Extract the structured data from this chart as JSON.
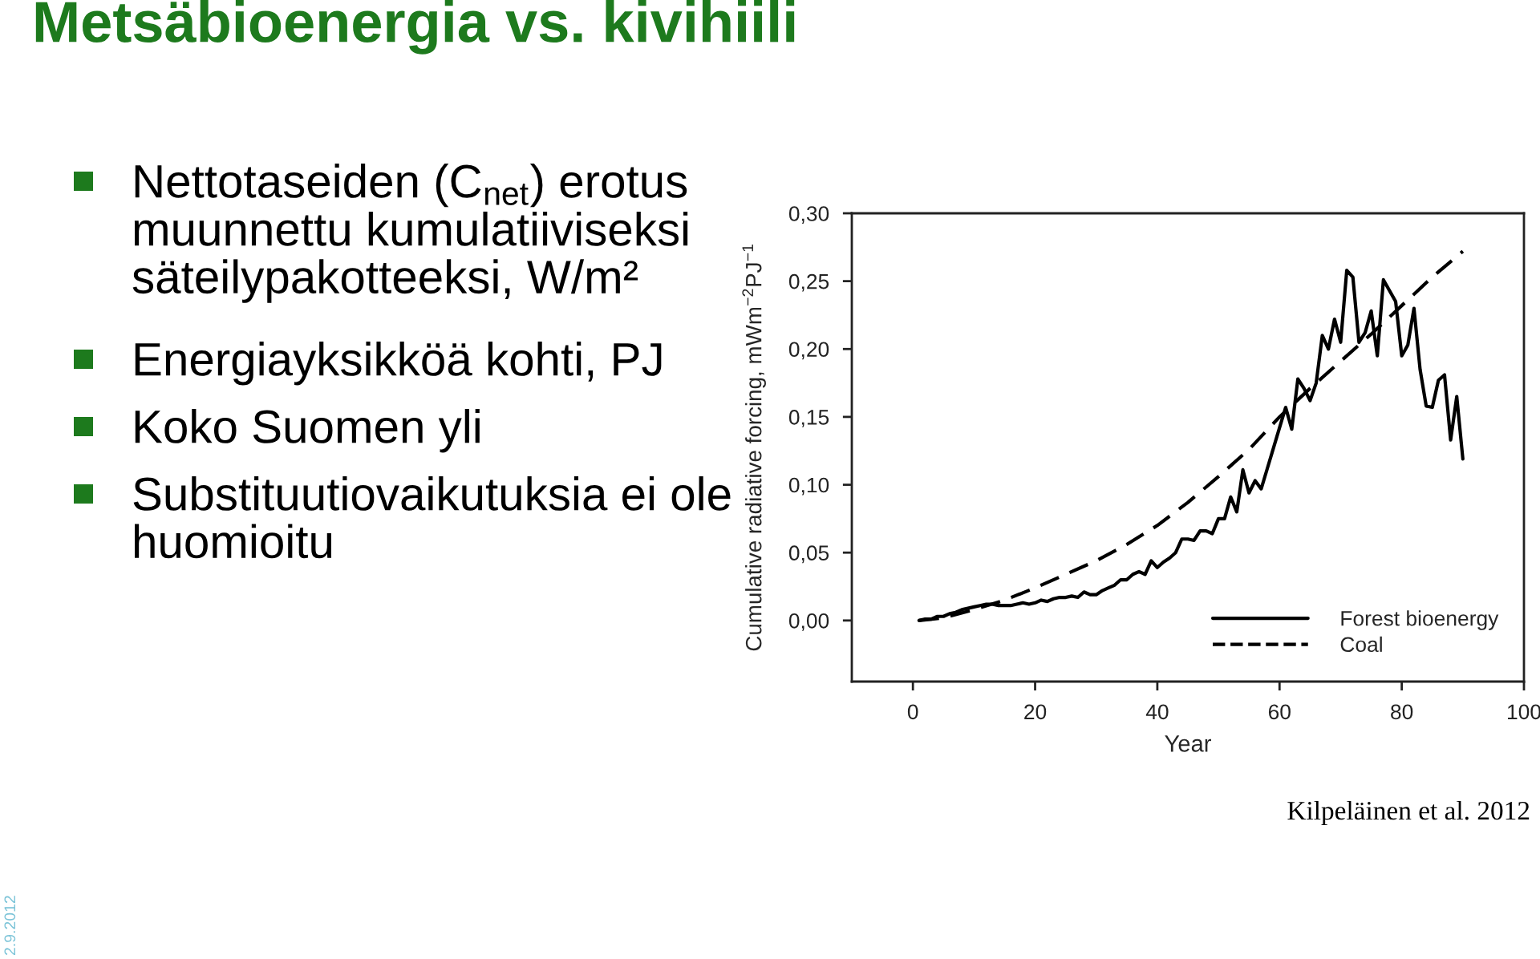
{
  "chart_data": {
    "type": "line",
    "title": "Metsäbioenergia vs. kivihiili",
    "xlabel": "Year",
    "ylabel": "Cumulative radiative forcing, mWm$^{−2}$PJ$^{−1}$",
    "series": [
      {
        "name": "Forest bioenergy",
        "color": "#000000",
        "line_style": "solid",
        "x": [
          1,
          2,
          3,
          4,
          5,
          6,
          7,
          8,
          9,
          10,
          11,
          12,
          13,
          14,
          15,
          16,
          17,
          18,
          19,
          20,
          21,
          22,
          23,
          24,
          25,
          26,
          27,
          28,
          29,
          30,
          31,
          32,
          33,
          34,
          35,
          36,
          37,
          38,
          39,
          40,
          41,
          42,
          43,
          44,
          45,
          46,
          47,
          48,
          49,
          50,
          51,
          52,
          53,
          54,
          55,
          56,
          57,
          58,
          59,
          60,
          61,
          62,
          63,
          64,
          65,
          66,
          67,
          68,
          69,
          70,
          71,
          72,
          73,
          74,
          75,
          76,
          77,
          78,
          79,
          80,
          81,
          82,
          83,
          84,
          85,
          86,
          87,
          88,
          89,
          90
        ],
        "values": [
          0.0,
          0.001,
          0.001,
          0.003,
          0.003,
          0.005,
          0.006,
          0.008,
          0.009,
          0.01,
          0.011,
          0.012,
          0.012,
          0.011,
          0.011,
          0.011,
          0.012,
          0.013,
          0.012,
          0.013,
          0.015,
          0.014,
          0.016,
          0.017,
          0.017,
          0.018,
          0.017,
          0.021,
          0.019,
          0.019,
          0.022,
          0.024,
          0.026,
          0.03,
          0.03,
          0.034,
          0.036,
          0.034,
          0.044,
          0.039,
          0.043,
          0.046,
          0.05,
          0.06,
          0.06,
          0.059,
          0.066,
          0.066,
          0.064,
          0.075,
          0.075,
          0.091,
          0.08,
          0.111,
          0.094,
          0.103,
          0.097,
          0.112,
          0.127,
          0.142,
          0.157,
          0.141,
          0.178,
          0.171,
          0.162,
          0.175,
          0.21,
          0.2,
          0.222,
          0.205,
          0.258,
          0.253,
          0.205,
          0.212,
          0.228,
          0.195,
          0.251,
          0.243,
          0.235,
          0.195,
          0.203,
          0.23,
          0.185,
          0.158,
          0.157,
          0.177,
          0.181,
          0.133,
          0.165,
          0.119
        ]
      },
      {
        "name": "Coal",
        "color": "#000000",
        "line_style": "dashed",
        "x": [
          1,
          5,
          10,
          15,
          20,
          25,
          30,
          35,
          40,
          45,
          50,
          55,
          60,
          65,
          70,
          75,
          80,
          85,
          90
        ],
        "values": [
          0.0,
          0.002,
          0.008,
          0.015,
          0.024,
          0.034,
          0.044,
          0.056,
          0.07,
          0.087,
          0.106,
          0.126,
          0.15,
          0.171,
          0.191,
          0.211,
          0.232,
          0.253,
          0.272
        ]
      }
    ],
    "xlim": [
      -10,
      100
    ],
    "xticks": [
      0,
      20,
      40,
      60,
      80,
      100
    ],
    "ylim": [
      -0.045,
      0.3
    ],
    "yticks": [
      {
        "value": 0,
        "label": "0,00"
      },
      {
        "value": 0.05,
        "label": "0,05"
      },
      {
        "value": 0.1,
        "label": "0,10"
      },
      {
        "value": 0.15,
        "label": "0,15"
      },
      {
        "value": 0.2,
        "label": "0,20"
      },
      {
        "value": 0.25,
        "label": "0,25"
      },
      {
        "value": 0.3,
        "label": "0,30"
      }
    ],
    "legend": "bottom right",
    "annotations": [
      "Nettotaseiden (C$_{net}$) erotus\nmuunnettu kumulatiiviseksi\nsäteilypakotteeksi, W/m²",
      "Energiayksikköä kohti, PJ",
      "Koko Suomen yli",
      "Substituutiovaikutuksia ei ole\nhuomioitu",
      "Kilpeläinen et al. 2012",
      "2.9.2012"
    ]
  }
}
